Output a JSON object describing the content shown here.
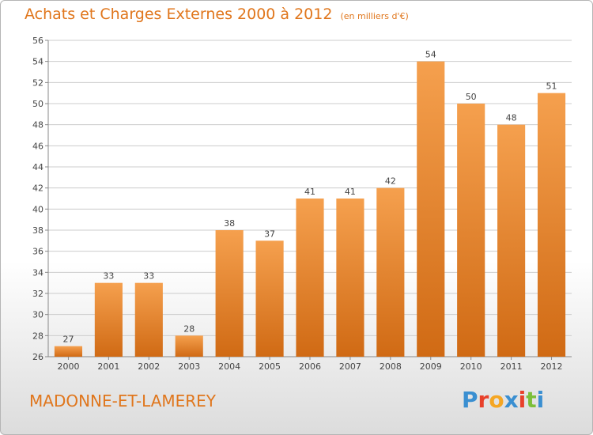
{
  "title": "Achats et Charges Externes 2000 à 2012",
  "title_unit": "(en milliers d'€)",
  "commune": "MADONNE-ET-LAMEREY",
  "logo": {
    "letters": [
      "P",
      "r",
      "o",
      "x",
      "i",
      "t",
      "i"
    ],
    "colors": [
      "#3a8fd1",
      "#e8402a",
      "#f5a623",
      "#3a8fd1",
      "#e8402a",
      "#7cbf3a",
      "#3a8fd1"
    ]
  },
  "colors": {
    "bar_top": "#f5a04e",
    "bar_bottom": "#d06a14",
    "title": "#e0761c",
    "grid": "#cccccc"
  },
  "chart_data": {
    "type": "bar",
    "categories": [
      "2000",
      "2001",
      "2002",
      "2003",
      "2004",
      "2005",
      "2006",
      "2007",
      "2008",
      "2009",
      "2010",
      "2011",
      "2012"
    ],
    "values": [
      27,
      33,
      33,
      28,
      38,
      37,
      41,
      41,
      42,
      54,
      50,
      48,
      51
    ],
    "ylim": [
      26,
      56
    ],
    "yticks": [
      26,
      28,
      30,
      32,
      34,
      36,
      38,
      40,
      42,
      44,
      46,
      48,
      50,
      52,
      54,
      56
    ],
    "grid": true,
    "data_labels": true
  }
}
